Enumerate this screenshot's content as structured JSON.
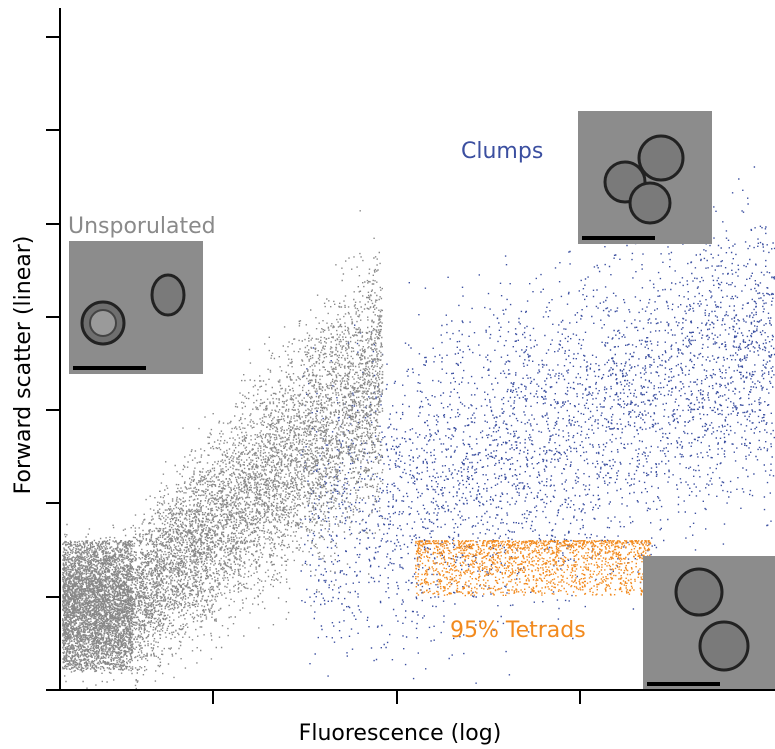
{
  "x_label": "Fluorescence (log)",
  "y_label": "Forward scatter (linear)",
  "annotations": {
    "unsporulated": "Unsporulated",
    "clumps": "Clumps",
    "tetrads": "95% Tetrads"
  }
}
